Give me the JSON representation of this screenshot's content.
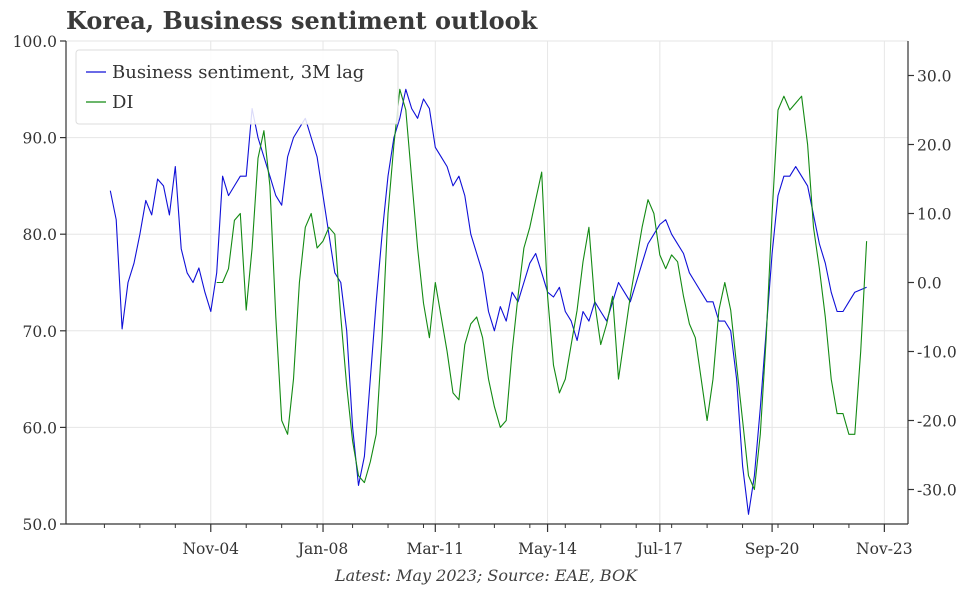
{
  "title": "Korea, Business sentiment outlook",
  "footnote": "Latest: May 2023; Source: EAE, BOK",
  "colors": {
    "series_blue": "#1010d8",
    "series_green": "#138a13",
    "grid": "#e6e6e6",
    "axis": "#333333"
  },
  "chart_data": {
    "type": "line",
    "grid": true,
    "legend_position": "top-left",
    "x_ticks": [
      "Nov-04",
      "Jan-08",
      "Mar-11",
      "May-14",
      "Jul-17",
      "Sep-20",
      "Nov-23"
    ],
    "y_left": {
      "ticks": [
        "50.0",
        "60.0",
        "70.0",
        "80.0",
        "90.0",
        "100.0"
      ],
      "range": [
        50,
        100
      ]
    },
    "y_right": {
      "ticks": [
        "-30.0",
        "-20.0",
        "-10.0",
        "0.0",
        "10.0",
        "20.0",
        "30.0"
      ],
      "range": [
        -35,
        35
      ]
    },
    "series": [
      {
        "name": "Business sentiment, 3M lag",
        "axis": "left",
        "color": "#1010d8",
        "points": [
          [
            "2002-01",
            84.5
          ],
          [
            "2002-03",
            81.5
          ],
          [
            "2002-05",
            70.2
          ],
          [
            "2002-07",
            75
          ],
          [
            "2002-09",
            77
          ],
          [
            "2002-11",
            80
          ],
          [
            "2003-01",
            83.5
          ],
          [
            "2003-03",
            82
          ],
          [
            "2003-05",
            85.7
          ],
          [
            "2003-07",
            85
          ],
          [
            "2003-09",
            82
          ],
          [
            "2003-11",
            87
          ],
          [
            "2004-01",
            78.5
          ],
          [
            "2004-03",
            76
          ],
          [
            "2004-05",
            75
          ],
          [
            "2004-07",
            76.5
          ],
          [
            "2004-09",
            74
          ],
          [
            "2004-11",
            72
          ],
          [
            "2005-01",
            76
          ],
          [
            "2005-03",
            86
          ],
          [
            "2005-05",
            84
          ],
          [
            "2005-07",
            85
          ],
          [
            "2005-09",
            86
          ],
          [
            "2005-11",
            86
          ],
          [
            "2006-01",
            93
          ],
          [
            "2006-03",
            90
          ],
          [
            "2006-05",
            88
          ],
          [
            "2006-07",
            86
          ],
          [
            "2006-09",
            84
          ],
          [
            "2006-11",
            83
          ],
          [
            "2007-01",
            88
          ],
          [
            "2007-03",
            90
          ],
          [
            "2007-05",
            91
          ],
          [
            "2007-07",
            92
          ],
          [
            "2007-09",
            90
          ],
          [
            "2007-11",
            88
          ],
          [
            "2008-01",
            84
          ],
          [
            "2008-03",
            80
          ],
          [
            "2008-05",
            76
          ],
          [
            "2008-07",
            75
          ],
          [
            "2008-09",
            70
          ],
          [
            "2008-11",
            60
          ],
          [
            "2009-01",
            54
          ],
          [
            "2009-03",
            57
          ],
          [
            "2009-05",
            65
          ],
          [
            "2009-07",
            73
          ],
          [
            "2009-09",
            80
          ],
          [
            "2009-11",
            86
          ],
          [
            "2010-01",
            90
          ],
          [
            "2010-03",
            92
          ],
          [
            "2010-05",
            95
          ],
          [
            "2010-07",
            93
          ],
          [
            "2010-09",
            92
          ],
          [
            "2010-11",
            94
          ],
          [
            "2011-01",
            93
          ],
          [
            "2011-03",
            89
          ],
          [
            "2011-05",
            88
          ],
          [
            "2011-07",
            87
          ],
          [
            "2011-09",
            85
          ],
          [
            "2011-11",
            86
          ],
          [
            "2012-01",
            84
          ],
          [
            "2012-03",
            80
          ],
          [
            "2012-05",
            78
          ],
          [
            "2012-07",
            76
          ],
          [
            "2012-09",
            72
          ],
          [
            "2012-11",
            70
          ],
          [
            "2013-01",
            72.5
          ],
          [
            "2013-03",
            71
          ],
          [
            "2013-05",
            74
          ],
          [
            "2013-07",
            73
          ],
          [
            "2013-09",
            75
          ],
          [
            "2013-11",
            77
          ],
          [
            "2014-01",
            78
          ],
          [
            "2014-03",
            76
          ],
          [
            "2014-05",
            74
          ],
          [
            "2014-07",
            73.5
          ],
          [
            "2014-09",
            74.5
          ],
          [
            "2014-11",
            72
          ],
          [
            "2015-01",
            71
          ],
          [
            "2015-03",
            69
          ],
          [
            "2015-05",
            72
          ],
          [
            "2015-07",
            71
          ],
          [
            "2015-09",
            73
          ],
          [
            "2015-11",
            72
          ],
          [
            "2016-01",
            71
          ],
          [
            "2016-03",
            73
          ],
          [
            "2016-05",
            75
          ],
          [
            "2016-07",
            74
          ],
          [
            "2016-09",
            73
          ],
          [
            "2016-11",
            75
          ],
          [
            "2017-01",
            77
          ],
          [
            "2017-03",
            79
          ],
          [
            "2017-05",
            80
          ],
          [
            "2017-07",
            81
          ],
          [
            "2017-09",
            81.5
          ],
          [
            "2017-11",
            80
          ],
          [
            "2018-01",
            79
          ],
          [
            "2018-03",
            78
          ],
          [
            "2018-05",
            76
          ],
          [
            "2018-07",
            75
          ],
          [
            "2018-09",
            74
          ],
          [
            "2018-11",
            73
          ],
          [
            "2019-01",
            73
          ],
          [
            "2019-03",
            71
          ],
          [
            "2019-05",
            71
          ],
          [
            "2019-07",
            70
          ],
          [
            "2019-09",
            65
          ],
          [
            "2019-11",
            56
          ],
          [
            "2020-01",
            51
          ],
          [
            "2020-03",
            55
          ],
          [
            "2020-05",
            62
          ],
          [
            "2020-07",
            70
          ],
          [
            "2020-09",
            78
          ],
          [
            "2020-11",
            84
          ],
          [
            "2021-01",
            86
          ],
          [
            "2021-03",
            86
          ],
          [
            "2021-05",
            87
          ],
          [
            "2021-07",
            86
          ],
          [
            "2021-09",
            85
          ],
          [
            "2021-11",
            82
          ],
          [
            "2022-01",
            79
          ],
          [
            "2022-03",
            77
          ],
          [
            "2022-05",
            74
          ],
          [
            "2022-07",
            72
          ],
          [
            "2022-09",
            72
          ],
          [
            "2022-11",
            73
          ],
          [
            "2023-01",
            74
          ],
          [
            "2023-05",
            74.5
          ]
        ]
      },
      {
        "name": "DI",
        "axis": "right",
        "color": "#138a13",
        "points": [
          [
            "2005-01",
            0
          ],
          [
            "2005-03",
            0
          ],
          [
            "2005-05",
            2
          ],
          [
            "2005-07",
            9
          ],
          [
            "2005-09",
            10
          ],
          [
            "2005-11",
            -4
          ],
          [
            "2006-01",
            5
          ],
          [
            "2006-03",
            18
          ],
          [
            "2006-05",
            22
          ],
          [
            "2006-07",
            14
          ],
          [
            "2006-09",
            -5
          ],
          [
            "2006-11",
            -20
          ],
          [
            "2007-01",
            -22
          ],
          [
            "2007-03",
            -14
          ],
          [
            "2007-05",
            0
          ],
          [
            "2007-07",
            8
          ],
          [
            "2007-09",
            10
          ],
          [
            "2007-11",
            5
          ],
          [
            "2008-01",
            6
          ],
          [
            "2008-03",
            8
          ],
          [
            "2008-05",
            7
          ],
          [
            "2008-07",
            -5
          ],
          [
            "2008-09",
            -15
          ],
          [
            "2008-11",
            -23
          ],
          [
            "2009-01",
            -28
          ],
          [
            "2009-03",
            -29
          ],
          [
            "2009-05",
            -26
          ],
          [
            "2009-07",
            -22
          ],
          [
            "2009-09",
            -8
          ],
          [
            "2009-11",
            10
          ],
          [
            "2010-01",
            20
          ],
          [
            "2010-03",
            28
          ],
          [
            "2010-05",
            25
          ],
          [
            "2010-07",
            15
          ],
          [
            "2010-09",
            5
          ],
          [
            "2010-11",
            -3
          ],
          [
            "2011-01",
            -8
          ],
          [
            "2011-03",
            0
          ],
          [
            "2011-05",
            -5
          ],
          [
            "2011-07",
            -10
          ],
          [
            "2011-09",
            -16
          ],
          [
            "2011-11",
            -17
          ],
          [
            "2012-01",
            -9
          ],
          [
            "2012-03",
            -6
          ],
          [
            "2012-05",
            -5
          ],
          [
            "2012-07",
            -8
          ],
          [
            "2012-09",
            -14
          ],
          [
            "2012-11",
            -18
          ],
          [
            "2013-01",
            -21
          ],
          [
            "2013-03",
            -20
          ],
          [
            "2013-05",
            -10
          ],
          [
            "2013-07",
            -2
          ],
          [
            "2013-09",
            5
          ],
          [
            "2013-11",
            8
          ],
          [
            "2014-01",
            12
          ],
          [
            "2014-03",
            16
          ],
          [
            "2014-05",
            -2
          ],
          [
            "2014-07",
            -12
          ],
          [
            "2014-09",
            -16
          ],
          [
            "2014-11",
            -14
          ],
          [
            "2015-01",
            -9
          ],
          [
            "2015-03",
            -4
          ],
          [
            "2015-05",
            3
          ],
          [
            "2015-07",
            8
          ],
          [
            "2015-09",
            -3
          ],
          [
            "2015-11",
            -9
          ],
          [
            "2016-01",
            -6
          ],
          [
            "2016-03",
            -2
          ],
          [
            "2016-05",
            -14
          ],
          [
            "2016-07",
            -8
          ],
          [
            "2016-09",
            -2
          ],
          [
            "2016-11",
            3
          ],
          [
            "2017-01",
            8
          ],
          [
            "2017-03",
            12
          ],
          [
            "2017-05",
            10
          ],
          [
            "2017-07",
            4
          ],
          [
            "2017-09",
            2
          ],
          [
            "2017-11",
            4
          ],
          [
            "2018-01",
            3
          ],
          [
            "2018-03",
            -2
          ],
          [
            "2018-05",
            -6
          ],
          [
            "2018-07",
            -8
          ],
          [
            "2018-09",
            -14
          ],
          [
            "2018-11",
            -20
          ],
          [
            "2019-01",
            -14
          ],
          [
            "2019-03",
            -4
          ],
          [
            "2019-05",
            0
          ],
          [
            "2019-07",
            -4
          ],
          [
            "2019-09",
            -12
          ],
          [
            "2019-11",
            -20
          ],
          [
            "2020-01",
            -28
          ],
          [
            "2020-03",
            -30
          ],
          [
            "2020-05",
            -22
          ],
          [
            "2020-07",
            -8
          ],
          [
            "2020-09",
            10
          ],
          [
            "2020-11",
            25
          ],
          [
            "2021-01",
            27
          ],
          [
            "2021-03",
            25
          ],
          [
            "2021-05",
            26
          ],
          [
            "2021-07",
            27
          ],
          [
            "2021-09",
            20
          ],
          [
            "2021-11",
            8
          ],
          [
            "2022-01",
            2
          ],
          [
            "2022-03",
            -5
          ],
          [
            "2022-05",
            -14
          ],
          [
            "2022-07",
            -19
          ],
          [
            "2022-09",
            -19
          ],
          [
            "2022-11",
            -22
          ],
          [
            "2023-01",
            -22
          ],
          [
            "2023-03",
            -10
          ],
          [
            "2023-05",
            6
          ]
        ]
      }
    ]
  }
}
